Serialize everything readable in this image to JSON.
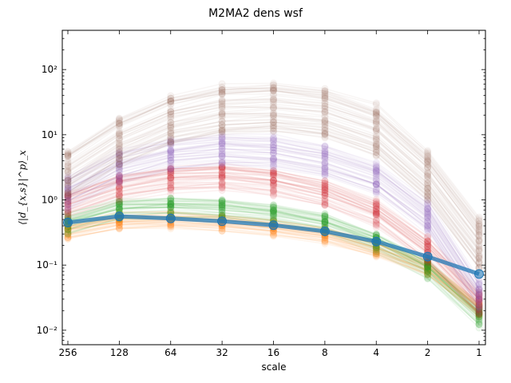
{
  "chart_data": {
    "type": "line",
    "title": "M2MA2 dens wsf",
    "xlabel": "scale",
    "ylabel": "⟨|d_{x,s}|^p⟩_x",
    "x_scale": "log2",
    "x_reversed": true,
    "y_scale": "log",
    "categories": [
      "256",
      "128",
      "64",
      "32",
      "16",
      "8",
      "4",
      "2",
      "1"
    ],
    "x": [
      256,
      128,
      64,
      32,
      16,
      8,
      4,
      2,
      1
    ],
    "ylim": [
      0.006,
      400
    ],
    "y_ticks": [
      0.01,
      0.1,
      1,
      10,
      100
    ],
    "y_tick_labels": [
      "10⁻²",
      "10⁻¹",
      "10⁰",
      "10¹",
      "10²"
    ],
    "grid": false,
    "legend": "none",
    "bundles": [
      {
        "color": "#ff7f0e",
        "opacity": 0.08,
        "description_values": "many near-identical faint curves",
        "base": [
          0.34,
          0.48,
          0.5,
          0.45,
          0.38,
          0.29,
          0.18,
          0.09,
          0.021
        ],
        "count": 40,
        "spread": 0.12
      },
      {
        "color": "#2ca02c",
        "opacity": 0.08,
        "base": [
          0.42,
          0.7,
          0.75,
          0.7,
          0.58,
          0.42,
          0.22,
          0.085,
          0.016
        ],
        "count": 40,
        "spread": 0.16
      },
      {
        "color": "#d62728",
        "opacity": 0.07,
        "base": [
          0.8,
          1.5,
          2.0,
          2.2,
          1.8,
          1.2,
          0.6,
          0.16,
          0.025
        ],
        "count": 40,
        "spread": 0.22
      },
      {
        "color": "#9467bd",
        "opacity": 0.07,
        "base": [
          1.3,
          3.2,
          5.0,
          6.0,
          5.5,
          4.0,
          2.2,
          0.55,
          0.035
        ],
        "count": 40,
        "spread": 0.25
      },
      {
        "color": "#8c564b",
        "opacity": 0.06,
        "base": [
          2.5,
          8.0,
          17,
          25,
          27,
          22,
          12,
          2.4,
          0.22
        ],
        "count": 50,
        "spread": 0.38
      }
    ],
    "series": [
      {
        "name": "",
        "color": "#1f77b4",
        "values": [
          0.45,
          0.56,
          0.52,
          0.47,
          0.41,
          0.33,
          0.23,
          0.135,
          0.073
        ]
      }
    ]
  }
}
